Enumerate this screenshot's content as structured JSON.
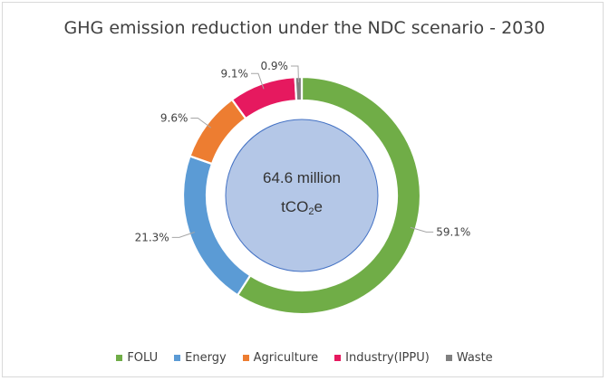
{
  "chart_data": {
    "type": "pie",
    "variant": "donut",
    "title": "GHG emission reduction under the NDC scenario - 2030",
    "center_label": {
      "line1": "64.6 million",
      "line2_prefix": "tCO",
      "line2_sub": "2",
      "line2_suffix": "e"
    },
    "categories": [
      "FOLU",
      "Energy",
      "Agriculture",
      "Industry(IPPU)",
      "Waste"
    ],
    "values": [
      59.1,
      21.3,
      9.6,
      9.1,
      0.9
    ],
    "data_labels": [
      "59.1%",
      "21.3%",
      "9.6%",
      "9.1%",
      "0.9%"
    ],
    "colors": [
      "#70ad47",
      "#5b9bd5",
      "#ed7d31",
      "#e6195f",
      "#808080"
    ],
    "center_fill": "#b4c7e7",
    "legend_position": "bottom"
  }
}
